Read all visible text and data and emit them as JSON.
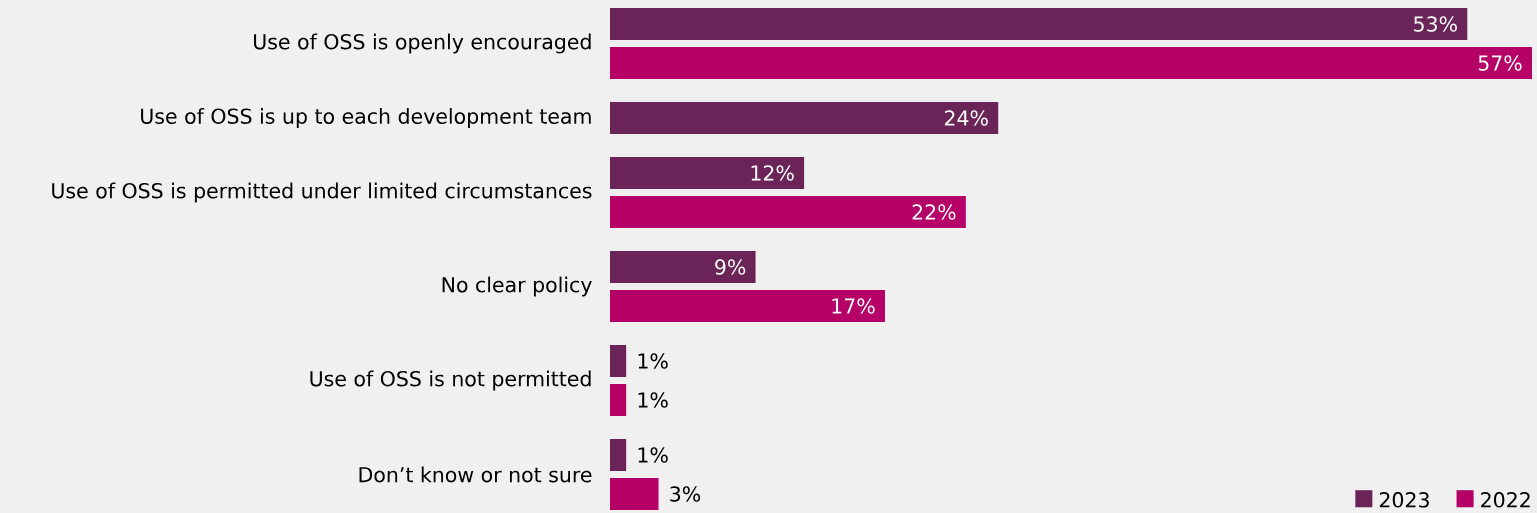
{
  "chart_data": {
    "type": "bar",
    "orientation": "horizontal",
    "categories": [
      "Use of OSS is openly encouraged",
      "Use of OSS is up to each development team",
      "Use of OSS is permitted under limited circumstances",
      "No clear policy",
      "Use of OSS is not permitted",
      "Don’t know or not sure"
    ],
    "series": [
      {
        "name": "2023",
        "color": "#6b2458",
        "values": [
          53,
          24,
          12,
          9,
          1,
          1
        ],
        "value_labels": [
          "53%",
          "24%",
          "12%",
          "9%",
          "1%",
          "1%"
        ]
      },
      {
        "name": "2022",
        "color": "#b50068",
        "values": [
          57,
          null,
          22,
          17,
          1,
          3
        ],
        "value_labels": [
          "57%",
          null,
          "22%",
          "17%",
          "1%",
          "3%"
        ]
      }
    ],
    "data_labels": true,
    "legend": "bottom right",
    "tick_labels": "y"
  }
}
